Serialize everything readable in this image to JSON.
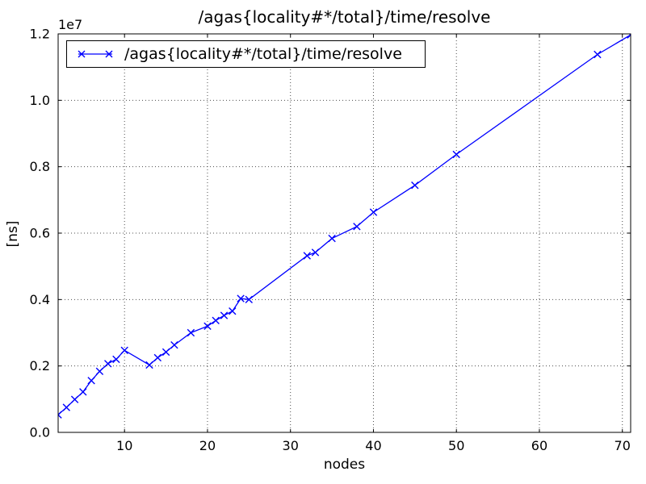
{
  "window": {
    "background": "#ffffff"
  },
  "chart_data": {
    "type": "line",
    "title": "/agas{locality#*/total}/time/resolve",
    "xlabel": "nodes",
    "ylabel": "[ns]",
    "y_offset_label": "1e7",
    "xlim": [
      2,
      71
    ],
    "ylim": [
      0,
      12000000
    ],
    "xticks": [
      10,
      20,
      30,
      40,
      50,
      60,
      70
    ],
    "xtick_labels": [
      "10",
      "20",
      "30",
      "40",
      "50",
      "60",
      "70"
    ],
    "yticks": [
      0,
      2000000,
      4000000,
      6000000,
      8000000,
      10000000,
      12000000
    ],
    "ytick_labels": [
      "0.0",
      "0.2",
      "0.4",
      "0.6",
      "0.8",
      "1.0",
      "1.2"
    ],
    "grid": "dotted",
    "grid_color": "#4d4d4d",
    "legend_position": "upper left",
    "series": [
      {
        "name": "/agas{locality#*/total}/time/resolve",
        "color": "#0000ff",
        "marker": "x",
        "x": [
          2,
          3,
          4,
          5,
          6,
          7,
          8,
          9,
          10,
          13,
          14,
          15,
          16,
          18,
          20,
          21,
          22,
          23,
          24,
          25,
          32,
          33,
          35,
          38,
          40,
          45,
          50,
          67,
          71
        ],
        "y": [
          530000,
          750000,
          990000,
          1220000,
          1560000,
          1840000,
          2070000,
          2200000,
          2470000,
          2030000,
          2250000,
          2420000,
          2630000,
          3000000,
          3200000,
          3370000,
          3520000,
          3650000,
          4030000,
          4000000,
          5320000,
          5420000,
          5840000,
          6200000,
          6630000,
          7440000,
          8370000,
          11380000,
          11970000
        ]
      }
    ]
  }
}
